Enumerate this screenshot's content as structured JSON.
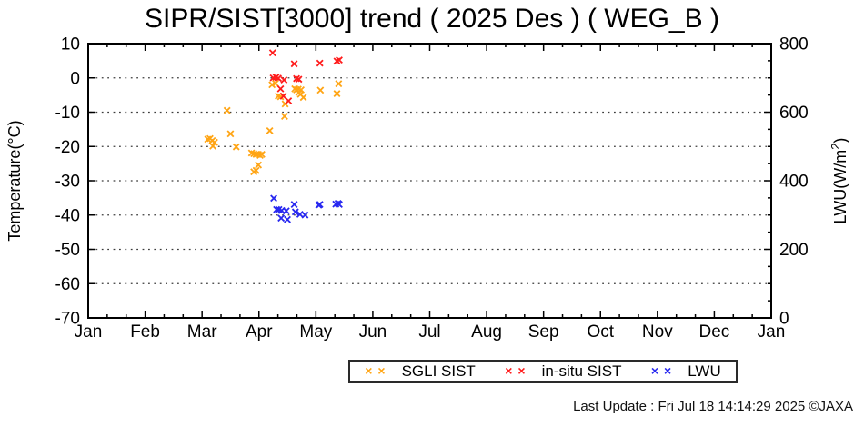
{
  "footer": {
    "last_update": "Last Update : Fri Jul 18 14:14:29 2025  ©JAXA"
  },
  "chart_data": {
    "type": "scatter",
    "title": "SIPR/SIST[3000] trend ( 2025 Des ) ( WEG_B )",
    "xlabel": "",
    "x_tick_labels": [
      "Jan",
      "Feb",
      "Mar",
      "Apr",
      "May",
      "Jun",
      "Jul",
      "Aug",
      "Sep",
      "Oct",
      "Nov",
      "Dec",
      "Jan"
    ],
    "x_minor_divisions": 3,
    "grid": "horizontal-dotted",
    "y_left": {
      "label": "Temperature(°C)",
      "min": -70,
      "max": 10,
      "ticks": [
        10,
        0,
        -10,
        -20,
        -30,
        -40,
        -50,
        -60,
        -70
      ],
      "grid_at": [
        0,
        -10,
        -20,
        -30,
        -40,
        -50,
        -60
      ]
    },
    "y_right": {
      "label": "LWU(W/m²)",
      "label_prefix": "LWU(W/m",
      "label_sup": "2",
      "label_suffix": ")",
      "min": 0,
      "max": 800,
      "ticks": [
        800,
        600,
        400,
        200,
        0
      ],
      "minor_step": 50
    },
    "legend": {
      "position": "bottom-center",
      "border": true
    },
    "series": [
      {
        "name": "SGLI SIST",
        "marker": "x",
        "color": "#ffa515",
        "axis": "left",
        "points": [
          [
            2.1,
            -17.9
          ],
          [
            2.14,
            -17.7
          ],
          [
            2.18,
            -18.3
          ],
          [
            2.22,
            -18.8
          ],
          [
            2.19,
            -19.9
          ],
          [
            2.44,
            -9.5
          ],
          [
            2.5,
            -16.3
          ],
          [
            2.6,
            -20.1
          ],
          [
            2.87,
            -21.9
          ],
          [
            2.91,
            -22.1
          ],
          [
            2.95,
            -22.3
          ],
          [
            2.99,
            -22.3
          ],
          [
            3.02,
            -22.6
          ],
          [
            3.05,
            -22.3
          ],
          [
            2.91,
            -27.4
          ],
          [
            2.95,
            -27.0
          ],
          [
            2.99,
            -25.4
          ],
          [
            3.19,
            -15.4
          ],
          [
            3.23,
            -2.0
          ],
          [
            3.29,
            -1.6
          ],
          [
            3.34,
            -5.3
          ],
          [
            3.38,
            -5.5
          ],
          [
            3.45,
            -11.2
          ],
          [
            3.46,
            -7.6
          ],
          [
            3.63,
            -3.2
          ],
          [
            3.66,
            -3.5
          ],
          [
            3.69,
            -3.3
          ],
          [
            3.7,
            -4.3
          ],
          [
            3.73,
            -4.8
          ],
          [
            3.74,
            -3.5
          ],
          [
            3.78,
            -5.7
          ],
          [
            4.08,
            -3.6
          ],
          [
            4.37,
            -4.6
          ],
          [
            4.4,
            -1.7
          ]
        ]
      },
      {
        "name": "in-situ SIST",
        "marker": "x",
        "color": "#ff1c1c",
        "axis": "left",
        "points": [
          [
            3.24,
            7.3
          ],
          [
            3.62,
            4.1
          ],
          [
            4.07,
            4.3
          ],
          [
            4.37,
            4.9
          ],
          [
            4.41,
            5.2
          ],
          [
            3.25,
            0.0
          ],
          [
            3.3,
            0.2
          ],
          [
            3.34,
            -0.1
          ],
          [
            3.44,
            -0.6
          ],
          [
            3.66,
            -0.2
          ],
          [
            3.7,
            -0.4
          ],
          [
            3.38,
            -3.2
          ],
          [
            3.43,
            -5.3
          ],
          [
            3.52,
            -6.7
          ]
        ]
      },
      {
        "name": "LWU",
        "marker": "x",
        "color": "#2828f0",
        "axis": "right",
        "points": [
          [
            3.26,
            349
          ],
          [
            3.31,
            316
          ],
          [
            3.35,
            316
          ],
          [
            3.4,
            313
          ],
          [
            3.48,
            312
          ],
          [
            3.39,
            291
          ],
          [
            3.5,
            287
          ],
          [
            3.62,
            331
          ],
          [
            3.64,
            309
          ],
          [
            3.72,
            302
          ],
          [
            3.81,
            300
          ],
          [
            4.05,
            329
          ],
          [
            4.07,
            331
          ],
          [
            4.35,
            332
          ],
          [
            4.39,
            334
          ],
          [
            4.41,
            331
          ]
        ]
      }
    ]
  }
}
